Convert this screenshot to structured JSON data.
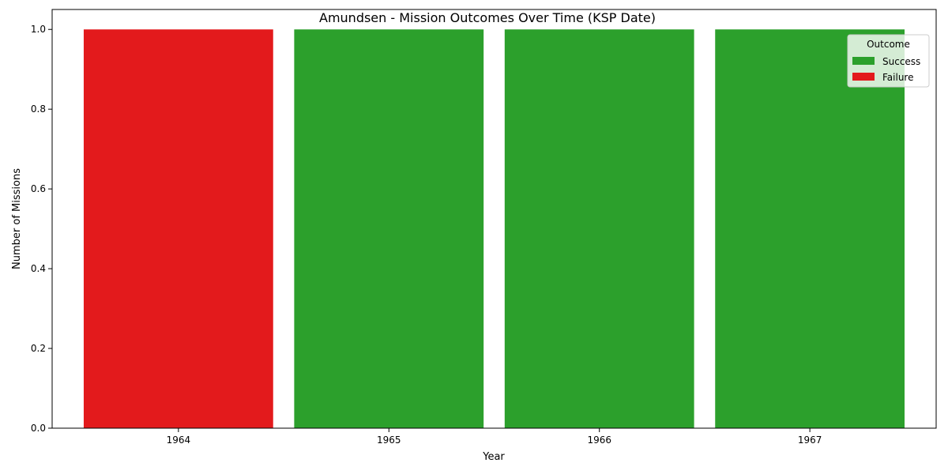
{
  "chart_data": {
    "type": "bar",
    "stacked": true,
    "title": "Amundsen - Mission Outcomes Over Time (KSP Date)",
    "xlabel": "Year",
    "ylabel": "Number of Missions",
    "categories": [
      "1964",
      "1965",
      "1966",
      "1967"
    ],
    "series": [
      {
        "name": "Success",
        "color": "#2ca02c",
        "values": [
          0,
          1,
          1,
          1
        ]
      },
      {
        "name": "Failure",
        "color": "#e31a1c",
        "values": [
          1,
          0,
          0,
          0
        ]
      }
    ],
    "ylim": [
      0,
      1.05
    ],
    "yticks": [
      "0.0",
      "0.2",
      "0.4",
      "0.6",
      "0.8",
      "1.0"
    ],
    "grid": false,
    "legend": {
      "title": "Outcome",
      "position": "top-right"
    }
  }
}
